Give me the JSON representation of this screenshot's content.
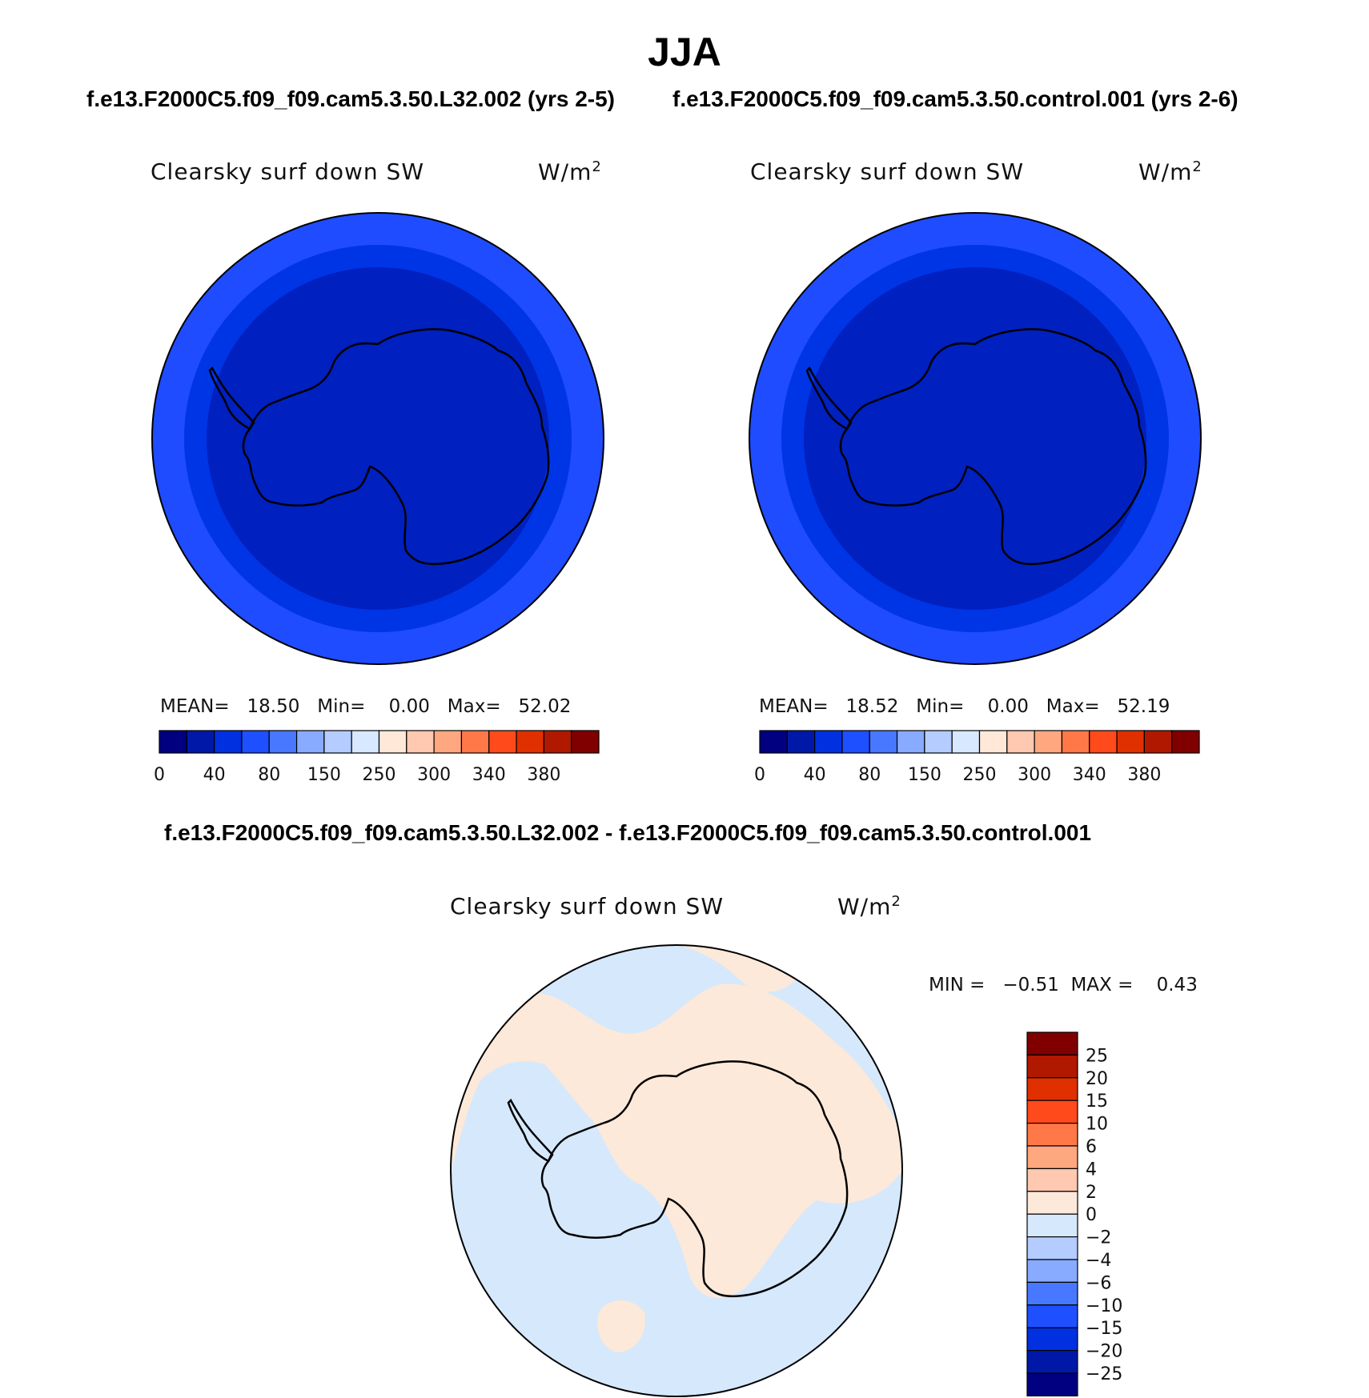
{
  "title": "JJA",
  "panels": [
    {
      "case_title": "f.e13.F2000C5.f09_f09.cam5.3.50.L32.002 (yrs 2-5)",
      "variable": "Clearsky surf down SW",
      "units_base": "W/m",
      "units_exp": "2",
      "stats": "MEAN=   18.50   Min=    0.00   Max=   52.02",
      "ring_colors": [
        "#1f4cff",
        "#0035e6",
        "#0020c0"
      ]
    },
    {
      "case_title": "f.e13.F2000C5.f09_f09.cam5.3.50.control.001 (yrs 2-6)",
      "variable": "Clearsky surf down SW",
      "units_base": "W/m",
      "units_exp": "2",
      "stats": "MEAN=   18.52   Min=    0.00   Max=   52.19",
      "ring_colors": [
        "#1f4cff",
        "#0035e6",
        "#0020c0"
      ]
    }
  ],
  "colorbar_top": {
    "colors": [
      "#000080",
      "#0018a8",
      "#0030e0",
      "#1e50ff",
      "#4878ff",
      "#88aaff",
      "#b4ccff",
      "#d8e8ff",
      "#ffe8d8",
      "#ffc8b0",
      "#ffa880",
      "#ff7848",
      "#ff4a1c",
      "#e03000",
      "#b01800",
      "#800000"
    ],
    "labels": [
      "0",
      "40",
      "80",
      "150",
      "250",
      "300",
      "340",
      "380"
    ]
  },
  "diff_panel": {
    "case_title": "f.e13.F2000C5.f09_f09.cam5.3.50.L32.002 - f.e13.F2000C5.f09_f09.cam5.3.50.control.001",
    "variable": "Clearsky surf down SW",
    "units_base": "W/m",
    "units_exp": "2",
    "stats": "MIN =   −0.51  MAX =    0.43",
    "positive_color": "#fde9d9",
    "negative_color": "#d6e8fb"
  },
  "colorbar_diff": {
    "colors": [
      "#800000",
      "#b01800",
      "#e03000",
      "#ff4a1c",
      "#ff7848",
      "#ffa880",
      "#ffc8b0",
      "#fde9d9",
      "#d6e8fb",
      "#b4ccff",
      "#88aaff",
      "#4878ff",
      "#1e50ff",
      "#0030e0",
      "#0018a8",
      "#000080"
    ],
    "labels": [
      "25",
      "20",
      "15",
      "10",
      "6",
      "4",
      "2",
      "0",
      "−2",
      "−4",
      "−6",
      "−10",
      "−15",
      "−20",
      "−25"
    ]
  }
}
